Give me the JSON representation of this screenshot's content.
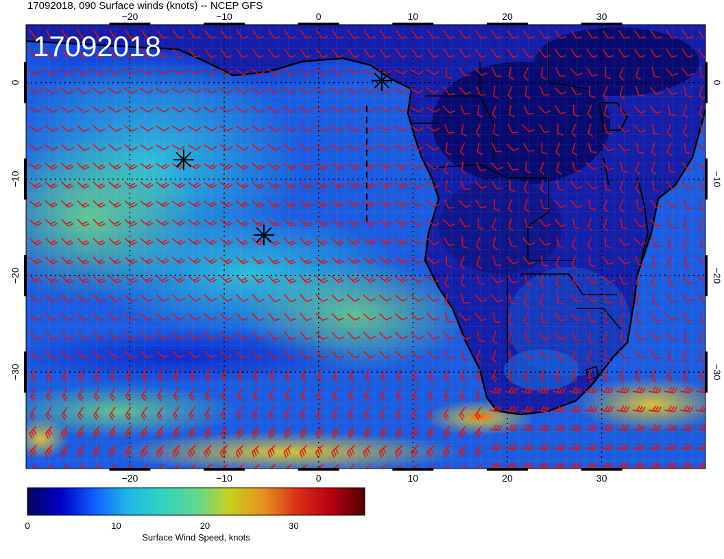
{
  "title": "17092018, 090 Surface winds (knots) -- NCEP GFS",
  "date_label": "17092018",
  "map": {
    "lon_range": [
      -31,
      41
    ],
    "lat_range": [
      -40,
      6
    ],
    "lon_ticks": [
      -20,
      -10,
      0,
      10,
      20,
      30
    ],
    "lat_ticks": [
      0,
      -10,
      -20,
      -30
    ],
    "lon_tick_labels": [
      "−20",
      "−10",
      "0",
      "10",
      "20",
      "30"
    ],
    "lat_tick_labels": [
      "0",
      "−10",
      "−20",
      "−30"
    ],
    "gridlines": "dotted",
    "barb_color": "#e01010",
    "markers": [
      {
        "symbol": "asterisk",
        "lon": -14.3,
        "lat": -8.0
      },
      {
        "symbol": "asterisk",
        "lon": -5.8,
        "lat": -15.8
      },
      {
        "symbol": "asterisk",
        "lon": 6.7,
        "lat": 0.2
      }
    ],
    "track_line": {
      "style": "dashed",
      "lon": 5.1,
      "lat_from": -2.4,
      "lat_to": -14.8
    }
  },
  "colorbar": {
    "label": "Surface Wind Speed, knots",
    "range": [
      0,
      38
    ],
    "ticks": [
      0,
      10,
      20,
      30
    ],
    "tick_labels": [
      "0",
      "10",
      "20",
      "30"
    ],
    "colors": [
      "#06045c",
      "#0000c8",
      "#1060ff",
      "#20b8e8",
      "#30d4c0",
      "#60d890",
      "#c8d020",
      "#e89020",
      "#d83018",
      "#b80010",
      "#500000"
    ]
  }
}
